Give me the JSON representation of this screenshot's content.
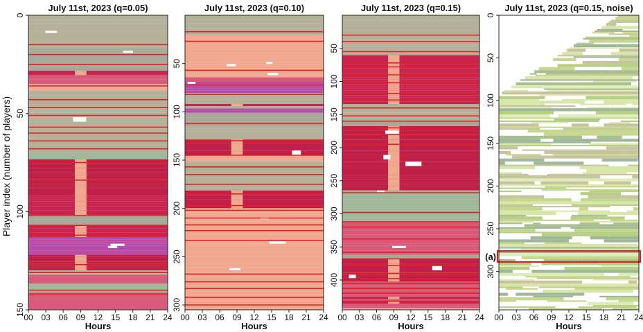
{
  "figure": {
    "ylabel": "Player index (number of players)",
    "annotation": "(a)"
  },
  "chart_data": [
    {
      "type": "heatmap",
      "title": "July 11st, 2023 (q=0.05)",
      "xlabel": "Hours",
      "xticks": [
        "00",
        "03",
        "06",
        "09",
        "12",
        "15",
        "18",
        "21",
        "24"
      ],
      "xlim": [
        0,
        24
      ],
      "ylim": [
        0,
        150
      ],
      "yticks": [
        0,
        50,
        100,
        150
      ],
      "cluster_lines": [
        15,
        20,
        25,
        36,
        43,
        47,
        51,
        57,
        60,
        64,
        68,
        75,
        84,
        102,
        107,
        112,
        127,
        131,
        140,
        142
      ]
    },
    {
      "type": "heatmap",
      "title": "July 11st, 2023 (q=0.10)",
      "xlabel": "Hours",
      "xticks": [
        "00",
        "03",
        "06",
        "09",
        "12",
        "15",
        "18",
        "21",
        "24"
      ],
      "xlim": [
        0,
        24
      ],
      "ylim": [
        0,
        305
      ],
      "yticks": [
        50,
        100,
        150,
        200,
        250,
        300
      ],
      "cluster_lines": [
        17,
        27,
        57,
        72,
        82,
        112,
        130,
        145,
        157,
        165,
        175,
        185,
        197,
        202,
        210,
        217,
        223,
        233,
        268,
        276,
        283,
        292,
        300
      ]
    },
    {
      "type": "heatmap",
      "title": "July 11st, 2023 (q=0.15)",
      "xlabel": "Hours",
      "xticks": [
        "00",
        "03",
        "06",
        "09",
        "12",
        "15",
        "18",
        "21",
        "24"
      ],
      "xlim": [
        0,
        24
      ],
      "ylim": [
        0,
        445
      ],
      "yticks": [
        50,
        100,
        150,
        200,
        250,
        300,
        350,
        400
      ],
      "cluster_lines": [
        30,
        40,
        55,
        72,
        78,
        90,
        102,
        118,
        128,
        140,
        152,
        160,
        170,
        180,
        195,
        268,
        298,
        312,
        320,
        338,
        358,
        368,
        378,
        390,
        398,
        405,
        413,
        420,
        432
      ]
    },
    {
      "type": "heatmap",
      "title": "July 11st, 2023 (q=0.15, noise)",
      "xlabel": "Hours",
      "xticks": [
        "00",
        "03",
        "06",
        "09",
        "12",
        "15",
        "18",
        "21",
        "24"
      ],
      "xlim": [
        0,
        24
      ],
      "ylim": [
        0,
        345
      ],
      "yticks": [
        0,
        50,
        100,
        150,
        200,
        250,
        300
      ],
      "cluster_lines": [],
      "highlight": {
        "label": "(a)",
        "y_range": [
          276,
          289
        ]
      }
    }
  ]
}
